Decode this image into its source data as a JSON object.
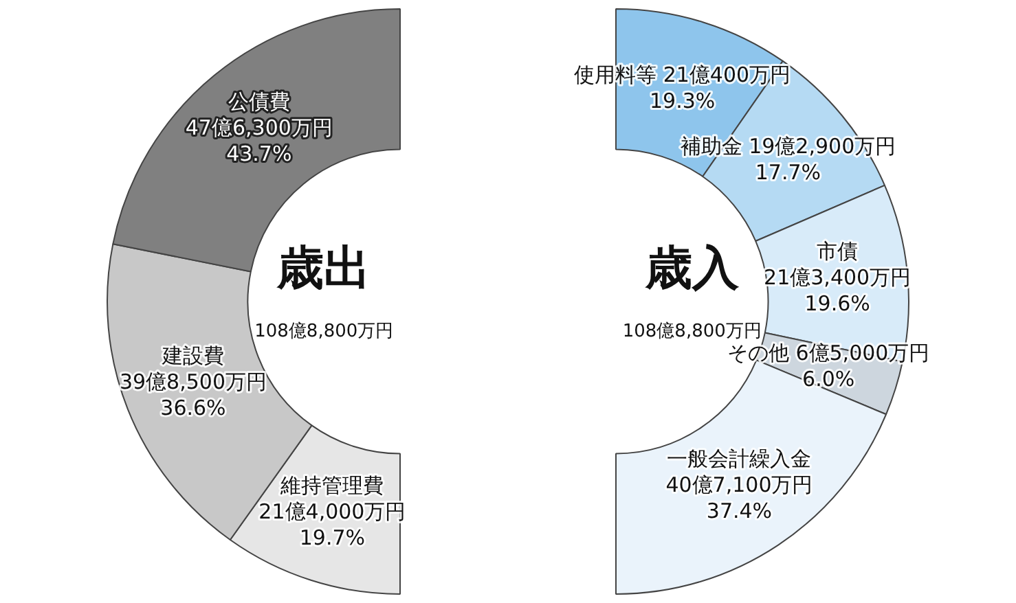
{
  "chart_data": [
    {
      "type": "donut",
      "title": "歳出",
      "subtitle": "108億8,800万円",
      "categories": [
        "維持管理費\n21億4,000万円",
        "建設費\n39億8,500万円",
        "公債費\n47億6,300万円"
      ],
      "values": [
        19.7,
        36.6,
        43.7
      ],
      "value_labels": [
        "19.7%",
        "36.6%",
        "43.7%"
      ],
      "colors": [
        "#e6e6e6",
        "#c8c8c8",
        "#808080"
      ]
    },
    {
      "type": "donut",
      "title": "歳入",
      "subtitle": "108億8,800万円",
      "categories": [
        "使用料等 21億400万円",
        "補助金 19億2,900万円",
        "市債\n21億3,400万円",
        "その他 6億5,000万円",
        "一般会計繰入金\n40億7,100万円"
      ],
      "values": [
        19.3,
        17.7,
        19.6,
        6.0,
        37.4
      ],
      "value_labels": [
        "19.3%",
        "17.7%",
        "19.6%",
        "6.0%",
        "37.4%"
      ],
      "colors": [
        "#8ec5ec",
        "#b5daf3",
        "#d8ebf9",
        "#cdd6de",
        "#eaf3fb"
      ]
    }
  ]
}
